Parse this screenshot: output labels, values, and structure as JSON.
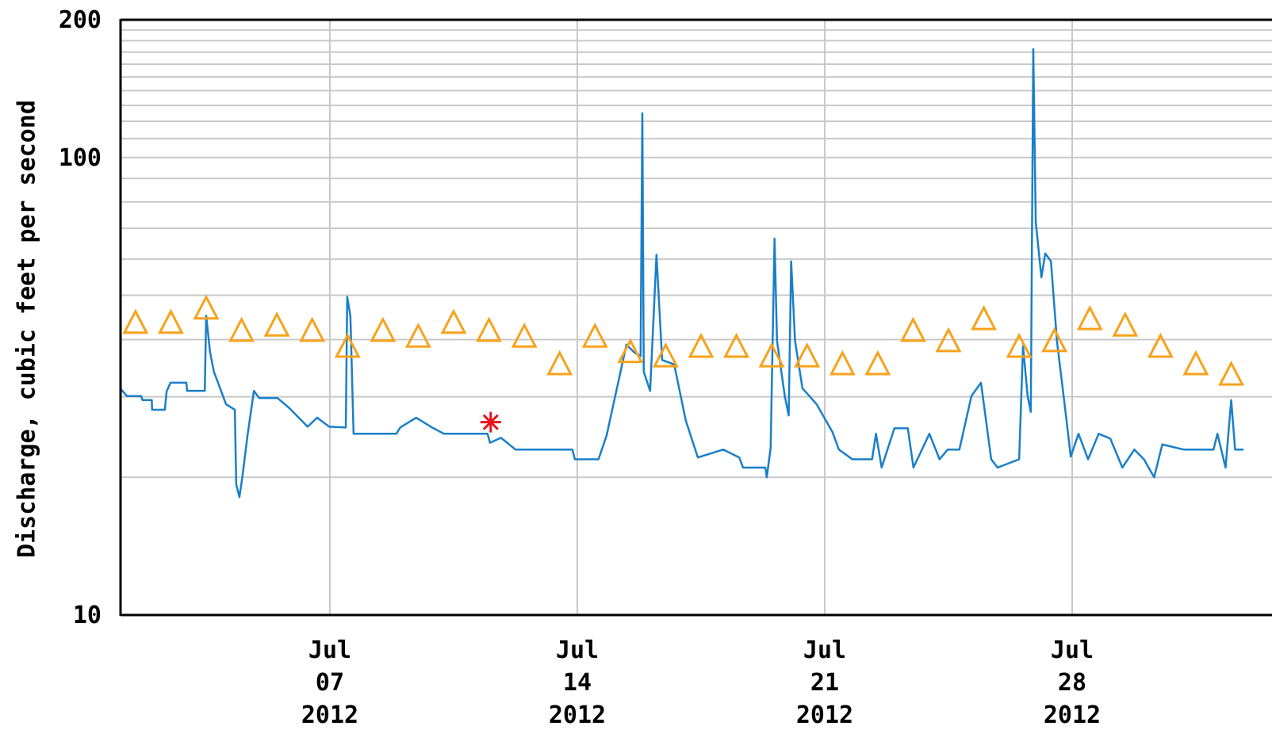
{
  "chart_data": {
    "type": "line",
    "ylabel": "Discharge, cubic feet per second",
    "log_y": true,
    "grid": true,
    "ylim": [
      10,
      200
    ],
    "yticks": [
      10,
      100,
      200
    ],
    "yminorticks": [
      20,
      30,
      40,
      50,
      60,
      70,
      80,
      90,
      110,
      120,
      130,
      140,
      150,
      160,
      170,
      180,
      190
    ],
    "xlim": [
      1.077,
      33.654
    ],
    "xticks": [
      {
        "value": 7,
        "label": "Jul\n07\n2012"
      },
      {
        "value": 14,
        "label": "Jul\n14\n2012"
      },
      {
        "value": 21,
        "label": "Jul\n21\n2012"
      },
      {
        "value": 28,
        "label": "Jul\n28\n2012"
      }
    ],
    "series": [
      {
        "color": "#1a7fc9",
        "marker": "none",
        "x": [
          1.08,
          1.26,
          1.66,
          1.7,
          1.96,
          1.97,
          2.33,
          2.38,
          2.49,
          2.94,
          2.96,
          3.46,
          3.5,
          3.61,
          3.72,
          4.06,
          4.31,
          4.35,
          4.44,
          4.53,
          4.67,
          4.85,
          5.0,
          5.52,
          5.86,
          6.37,
          6.64,
          6.98,
          7.45,
          7.49,
          7.58,
          7.67,
          8.88,
          8.99,
          9.44,
          9.89,
          10.23,
          11.46,
          11.53,
          11.84,
          12.25,
          13.86,
          13.93,
          14.6,
          14.83,
          15.12,
          15.39,
          15.61,
          15.79,
          15.84,
          15.88,
          16.06,
          16.24,
          16.4,
          16.74,
          17.07,
          17.41,
          18.13,
          18.58,
          18.69,
          19.32,
          19.36,
          19.47,
          19.58,
          19.65,
          19.87,
          19.98,
          20.05,
          20.16,
          20.37,
          20.77,
          21.22,
          21.4,
          21.78,
          22.34,
          22.45,
          22.61,
          22.97,
          23.35,
          23.51,
          23.96,
          24.25,
          24.48,
          24.81,
          25.15,
          25.42,
          25.71,
          25.89,
          26.5,
          26.61,
          26.74,
          26.83,
          26.9,
          26.97,
          27.13,
          27.24,
          27.4,
          27.57,
          27.8,
          27.96,
          28.18,
          28.45,
          28.75,
          29.08,
          29.42,
          29.76,
          30.03,
          30.32,
          30.55,
          31.15,
          32.0,
          32.11,
          32.34,
          32.5,
          32.61,
          32.85
        ],
        "values": [
          31.2,
          30.1,
          30.1,
          29.5,
          29.5,
          28.1,
          28.1,
          30.8,
          32.2,
          32.2,
          30.9,
          30.9,
          45.1,
          37.5,
          34.0,
          28.9,
          28.1,
          19.3,
          18.1,
          20.2,
          24.7,
          30.9,
          29.8,
          29.8,
          28.3,
          25.8,
          27.0,
          25.8,
          25.7,
          49.6,
          45.0,
          24.9,
          24.9,
          25.7,
          27.0,
          25.7,
          24.9,
          24.9,
          23.8,
          24.4,
          23.0,
          23.0,
          21.9,
          21.9,
          24.7,
          31.3,
          39.0,
          37.5,
          36.8,
          125,
          34.0,
          30.9,
          61.3,
          36.1,
          35.3,
          26.6,
          22.1,
          23.0,
          22.1,
          21.0,
          21.0,
          20.0,
          23.2,
          66.5,
          39.7,
          30.1,
          27.3,
          59.3,
          39.7,
          31.3,
          28.9,
          25.1,
          23.0,
          21.9,
          21.9,
          24.9,
          21.0,
          25.6,
          25.6,
          21.0,
          24.9,
          21.9,
          23.0,
          23.0,
          30.1,
          32.2,
          21.9,
          21.0,
          21.9,
          38.7,
          30.1,
          27.8,
          172.6,
          72.3,
          54.7,
          61.7,
          59.3,
          39.7,
          28.3,
          22.2,
          24.9,
          21.9,
          24.9,
          24.3,
          21.0,
          23.0,
          21.9,
          20.0,
          23.6,
          23.0,
          23.0,
          24.9,
          21.0,
          29.5,
          23.0,
          23.0
        ]
      },
      {
        "color": "#f7a21b",
        "marker": "triangle",
        "x": [
          1.5,
          2.5,
          3.5,
          4.5,
          5.5,
          6.5,
          7.5,
          8.5,
          9.5,
          10.5,
          11.5,
          12.5,
          13.5,
          14.5,
          15.5,
          16.5,
          17.5,
          18.5,
          19.5,
          20.5,
          21.5,
          22.5,
          23.5,
          24.5,
          25.5,
          26.5,
          27.5,
          28.5,
          29.5,
          30.5,
          31.5,
          32.5
        ],
        "values": [
          43.1,
          43.1,
          46.3,
          41.4,
          42.5,
          41.4,
          38.2,
          41.4,
          40.2,
          43.1,
          41.4,
          40.2,
          35.0,
          40.2,
          37.2,
          36.4,
          38.2,
          38.2,
          36.4,
          36.4,
          35.0,
          35.0,
          41.4,
          39.3,
          43.9,
          38.2,
          39.3,
          43.9,
          42.5,
          38.2,
          35.0,
          33.2
        ]
      },
      {
        "color": "#e8101a",
        "marker": "asterisk",
        "x": [
          11.55
        ],
        "values": [
          26.4
        ]
      }
    ]
  }
}
